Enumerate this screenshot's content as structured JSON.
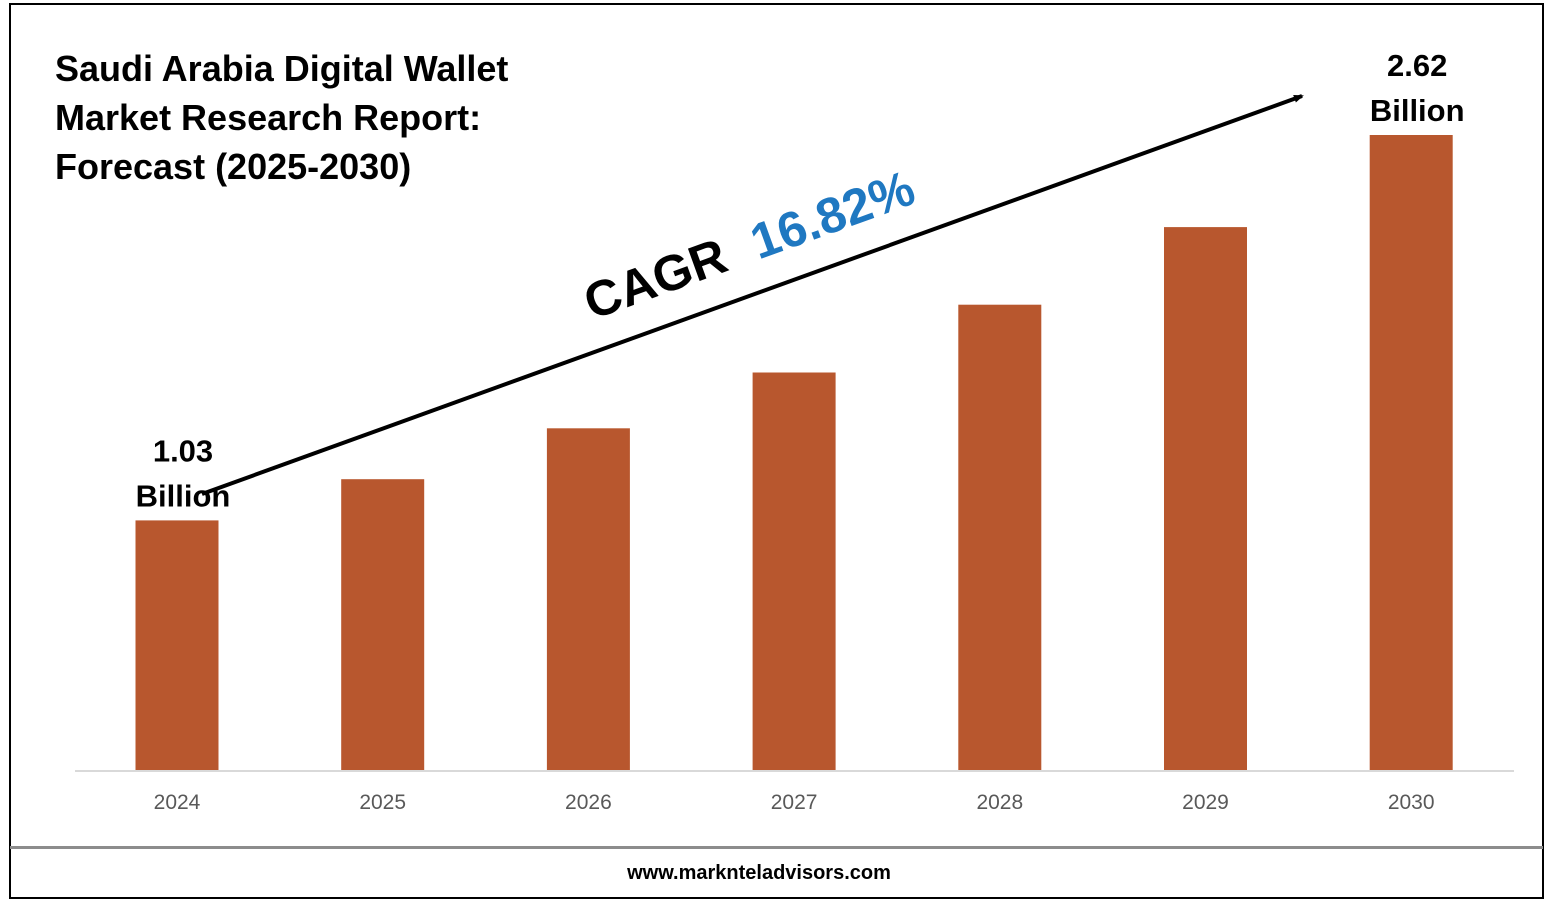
{
  "title_lines": [
    "Saudi Arabia Digital Wallet",
    "Market Research Report:",
    "Forecast (2025-2030)"
  ],
  "cagr": {
    "label": "CAGR",
    "value": "16.82%"
  },
  "colors": {
    "bar": "#b8572e",
    "cagr_value": "#1f78c1",
    "text": "#000000",
    "axis": "#d9d9d9",
    "tick_label": "#595959"
  },
  "chart_data": {
    "type": "bar",
    "categories": [
      "2024",
      "2025",
      "2026",
      "2027",
      "2028",
      "2029",
      "2030"
    ],
    "values": [
      1.03,
      1.2,
      1.41,
      1.64,
      1.92,
      2.24,
      2.62
    ],
    "ylabel": "",
    "ylim": [
      0,
      2.62
    ],
    "grid": false,
    "data_labels": [
      {
        "category": "2024",
        "lines": [
          "1.03",
          "Billion"
        ]
      },
      {
        "category": "2030",
        "lines": [
          "2.62",
          "Billion"
        ]
      }
    ]
  },
  "footer": {
    "url": "www.marknteladvisors.com"
  }
}
